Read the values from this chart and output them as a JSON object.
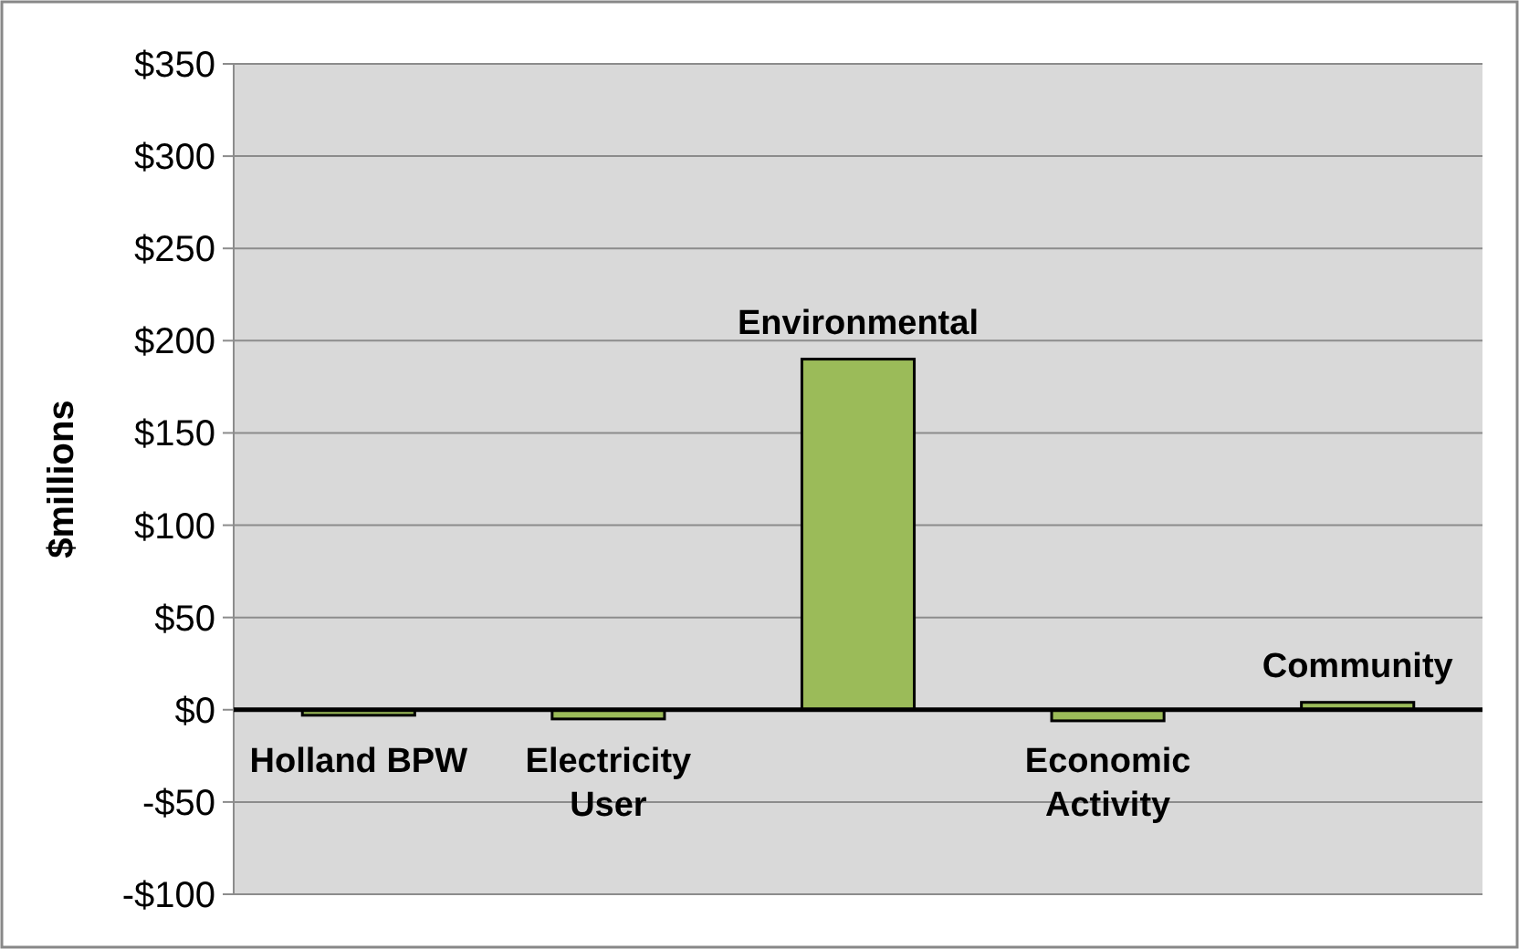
{
  "chart_data": {
    "type": "bar",
    "ylabel": "$millions",
    "categories": [
      "Holland BPW",
      "Electricity\nUser",
      "Environmental",
      "Economic\nActivity",
      "Community"
    ],
    "values": [
      -3,
      -5,
      190,
      -6,
      4
    ],
    "color": "#9bbb59",
    "ylim": [
      -100,
      350
    ],
    "yticks": [
      {
        "value": -100,
        "label": "-$100"
      },
      {
        "value": -50,
        "label": "-$50"
      },
      {
        "value": 0,
        "label": "$0"
      },
      {
        "value": 50,
        "label": "$50"
      },
      {
        "value": 100,
        "label": "$100"
      },
      {
        "value": 150,
        "label": "$150"
      },
      {
        "value": 200,
        "label": "$200"
      },
      {
        "value": 250,
        "label": "$250"
      },
      {
        "value": 300,
        "label": "$300"
      },
      {
        "value": 350,
        "label": "$350"
      }
    ],
    "grid": "y"
  }
}
